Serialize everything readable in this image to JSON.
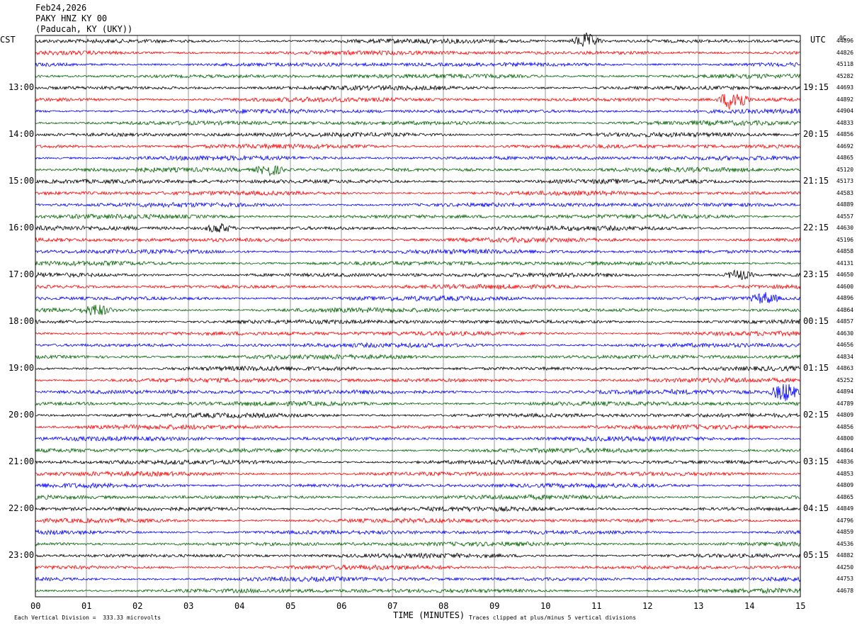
{
  "header": {
    "date": "Feb24,2026",
    "station": "PAKY HNZ KY 00",
    "location": "(Paducah, KY (UKY))"
  },
  "left_tz": "CST",
  "right_tz": "UTC",
  "corner_label": "0C",
  "footer": {
    "scale_note": "Each Vertical Division =  333.33 microvolts",
    "clip_note": "Traces clipped at plus/minus 5 vertical divisions"
  },
  "colors": {
    "trace_cycle": [
      "#000000",
      "#ff0000",
      "#0000ff",
      "#006400"
    ],
    "gridline": "#999999"
  },
  "chart_data": {
    "type": "line",
    "xlabel": "TIME (MINUTES)",
    "xlim": [
      0,
      15
    ],
    "x_ticks": [
      "00",
      "01",
      "02",
      "03",
      "04",
      "05",
      "06",
      "07",
      "08",
      "09",
      "10",
      "11",
      "12",
      "13",
      "14",
      "15"
    ],
    "trace_count": 48,
    "left_hour_labels": [
      "13:00",
      "14:00",
      "15:00",
      "16:00",
      "17:00",
      "18:00",
      "19:00",
      "20:00",
      "21:00",
      "22:00",
      "23:00"
    ],
    "right_hour_labels": [
      "19:15",
      "20:15",
      "21:15",
      "22:15",
      "23:15",
      "00:15",
      "01:15",
      "02:15",
      "03:15",
      "04:15",
      "05:15"
    ],
    "trace_values": [
      "44896",
      "44826",
      "45118",
      "45282",
      "44693",
      "44892",
      "44904",
      "44833",
      "44856",
      "44692",
      "44865",
      "45120",
      "45173",
      "44583",
      "44889",
      "44557",
      "44630",
      "45196",
      "44858",
      "44131",
      "44650",
      "44600",
      "44896",
      "44864",
      "44857",
      "44630",
      "44656",
      "44834",
      "44863",
      "45252",
      "44894",
      "44789",
      "44809",
      "44856",
      "44800",
      "44864",
      "44836",
      "44853",
      "44809",
      "44865",
      "44849",
      "44796",
      "44859",
      "44536",
      "44882",
      "44250",
      "44753",
      "44678"
    ],
    "events": [
      {
        "trace": 0,
        "minute": 10.8,
        "amp": 3.5
      },
      {
        "trace": 5,
        "minute": 13.7,
        "amp": 5.5
      },
      {
        "trace": 22,
        "minute": 14.3,
        "amp": 2.5
      },
      {
        "trace": 30,
        "minute": 14.7,
        "amp": 4.5
      },
      {
        "trace": 11,
        "minute": 4.6,
        "amp": 2.5
      },
      {
        "trace": 16,
        "minute": 3.6,
        "amp": 2.2
      },
      {
        "trace": 20,
        "minute": 13.8,
        "amp": 2.5
      },
      {
        "trace": 23,
        "minute": 1.2,
        "amp": 2.5
      }
    ]
  }
}
